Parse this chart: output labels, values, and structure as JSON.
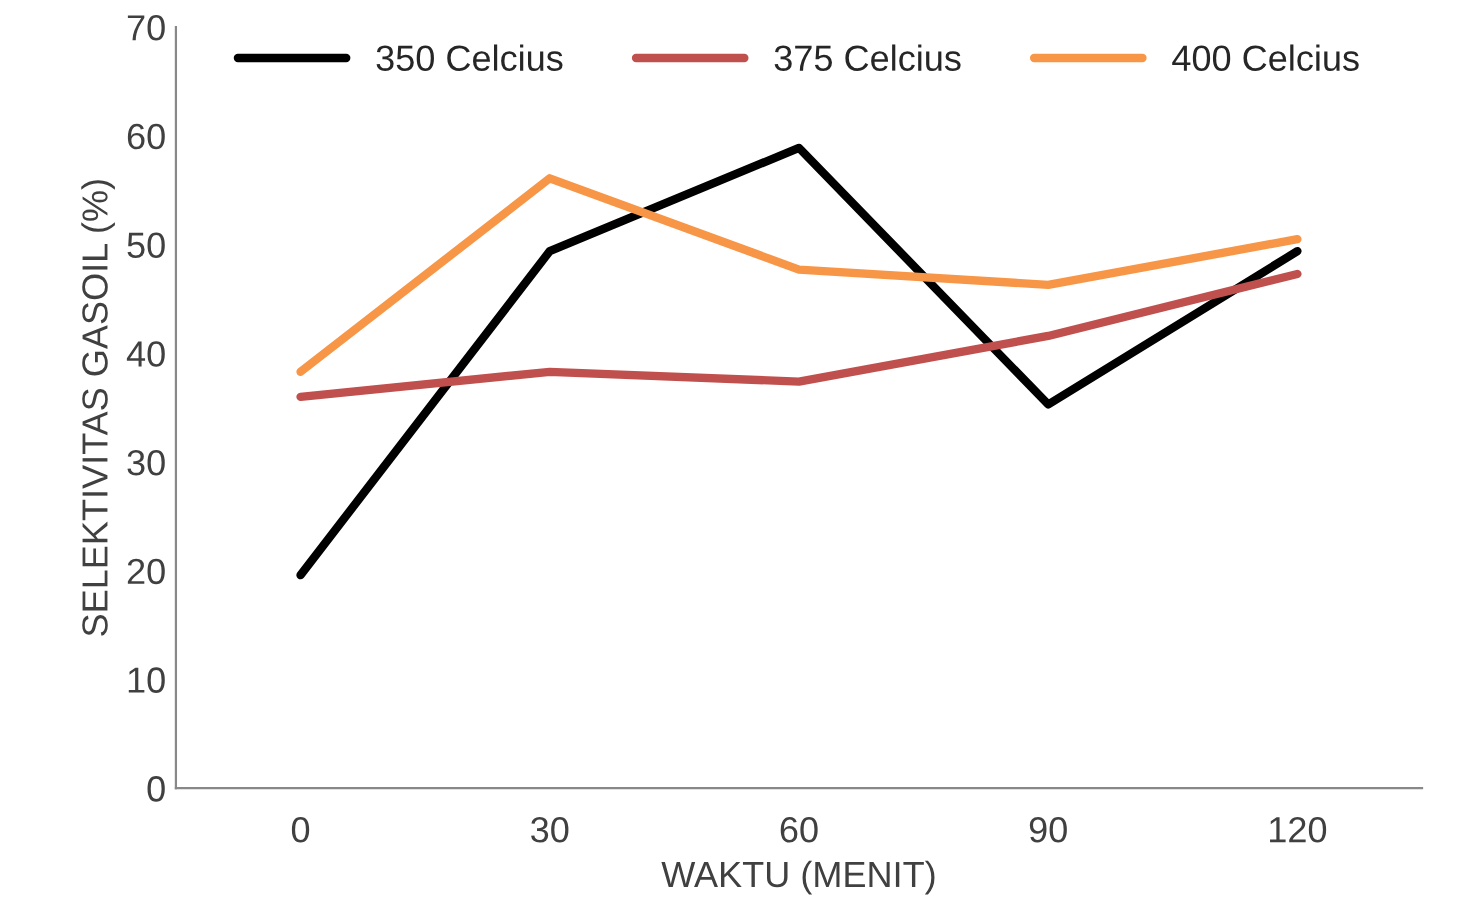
{
  "chart_data": {
    "type": "line",
    "xlabel": "WAKTU (MENIT)",
    "ylabel": "SELEKTIVITAS GASOIL (%)",
    "categories": [
      "0",
      "30",
      "60",
      "90",
      "120"
    ],
    "series": [
      {
        "name": "350 Celcius",
        "color": "#000000",
        "values": [
          19.6,
          49.4,
          58.9,
          35.3,
          49.4
        ]
      },
      {
        "name": "375 Celcius",
        "color": "#c0504d",
        "values": [
          36.0,
          38.3,
          37.4,
          41.6,
          47.3
        ]
      },
      {
        "name": "400 Celcius",
        "color": "#f79646",
        "values": [
          38.3,
          56.1,
          47.7,
          46.3,
          50.5
        ]
      }
    ],
    "ylim": [
      0,
      70
    ],
    "yticks": [
      0,
      10,
      20,
      30,
      40,
      50,
      60,
      70
    ],
    "grid": false,
    "legend": "top",
    "marker": "none",
    "line_style": "solid"
  }
}
